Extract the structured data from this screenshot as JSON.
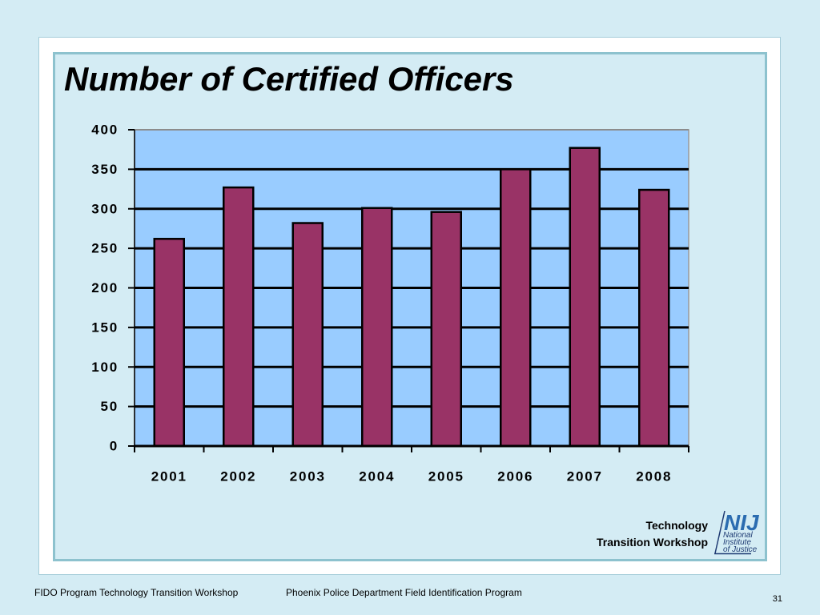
{
  "colors": {
    "page_background": "#d4ecf4",
    "frame_border": "#8dc2ce",
    "bar": "#993366",
    "plot_fill": "#99ccff",
    "gridline": "#000000",
    "nij_blue": "#2b6cb0"
  },
  "branding": {
    "line1": "Technology",
    "line2": "Transition Workshop",
    "nij_logo": {
      "icon": "nij-logo-icon",
      "mark": "NIJ",
      "line1": "National",
      "line2": "Institute",
      "line3": "of Justice"
    }
  },
  "footer": {
    "left": "FIDO Program Technology Transition Workshop",
    "center": "Phoenix Police Department Field Identification Program",
    "page_number": "31"
  },
  "chart_data": {
    "type": "bar",
    "title": "Number of Certified Officers",
    "xlabel": "",
    "ylabel": "",
    "categories": [
      "2001",
      "2002",
      "2003",
      "2004",
      "2005",
      "2006",
      "2007",
      "2008"
    ],
    "values": [
      262,
      327,
      282,
      301,
      296,
      350,
      377,
      324
    ],
    "ylim": [
      0,
      400
    ],
    "yticks": [
      0,
      50,
      100,
      150,
      200,
      250,
      300,
      350,
      400
    ],
    "grid": true,
    "legend": "none"
  }
}
